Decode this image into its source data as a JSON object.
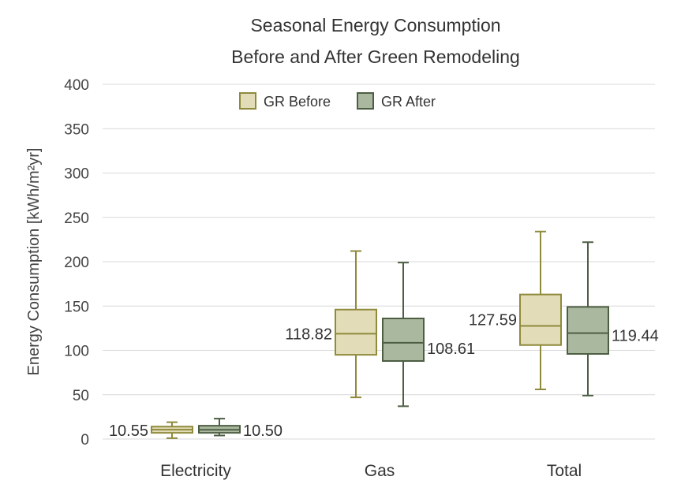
{
  "chart_data": {
    "type": "box",
    "title": [
      "Seasonal Energy Consumption",
      "Before and After Green Remodeling"
    ],
    "xlabel": "",
    "ylabel": "Energy Consumption [kWh/m²yr]",
    "ylim": [
      0,
      400
    ],
    "yticks": [
      0,
      50,
      100,
      150,
      200,
      250,
      300,
      350,
      400
    ],
    "ytick_labels": [
      "0",
      "50",
      "100",
      "150",
      "200",
      "250",
      "300",
      "350",
      "400"
    ],
    "categories": [
      "Electricity",
      "Gas",
      "Total"
    ],
    "grid": true,
    "legend_position": "top-center",
    "series": [
      {
        "name": "GR Before",
        "fill": "#e3dcb8",
        "stroke": "#8f8a3c",
        "boxes": [
          {
            "min": 1,
            "q1": 7,
            "median": 10.55,
            "q3": 14,
            "max": 19,
            "median_label": "10.55"
          },
          {
            "min": 47,
            "q1": 95,
            "median": 118.82,
            "q3": 146,
            "max": 212,
            "median_label": "118.82"
          },
          {
            "min": 56,
            "q1": 106,
            "median": 127.59,
            "q3": 163,
            "max": 234,
            "median_label": "127.59"
          }
        ]
      },
      {
        "name": "GR After",
        "fill": "#a9b89f",
        "stroke": "#4d5e43",
        "boxes": [
          {
            "min": 4,
            "q1": 7,
            "median": 10.5,
            "q3": 15,
            "max": 23,
            "median_label": "10.50"
          },
          {
            "min": 37,
            "q1": 88,
            "median": 108.61,
            "q3": 136,
            "max": 199,
            "median_label": "108.61"
          },
          {
            "min": 49,
            "q1": 96,
            "median": 119.44,
            "q3": 149,
            "max": 222,
            "median_label": "119.44"
          }
        ]
      }
    ]
  }
}
